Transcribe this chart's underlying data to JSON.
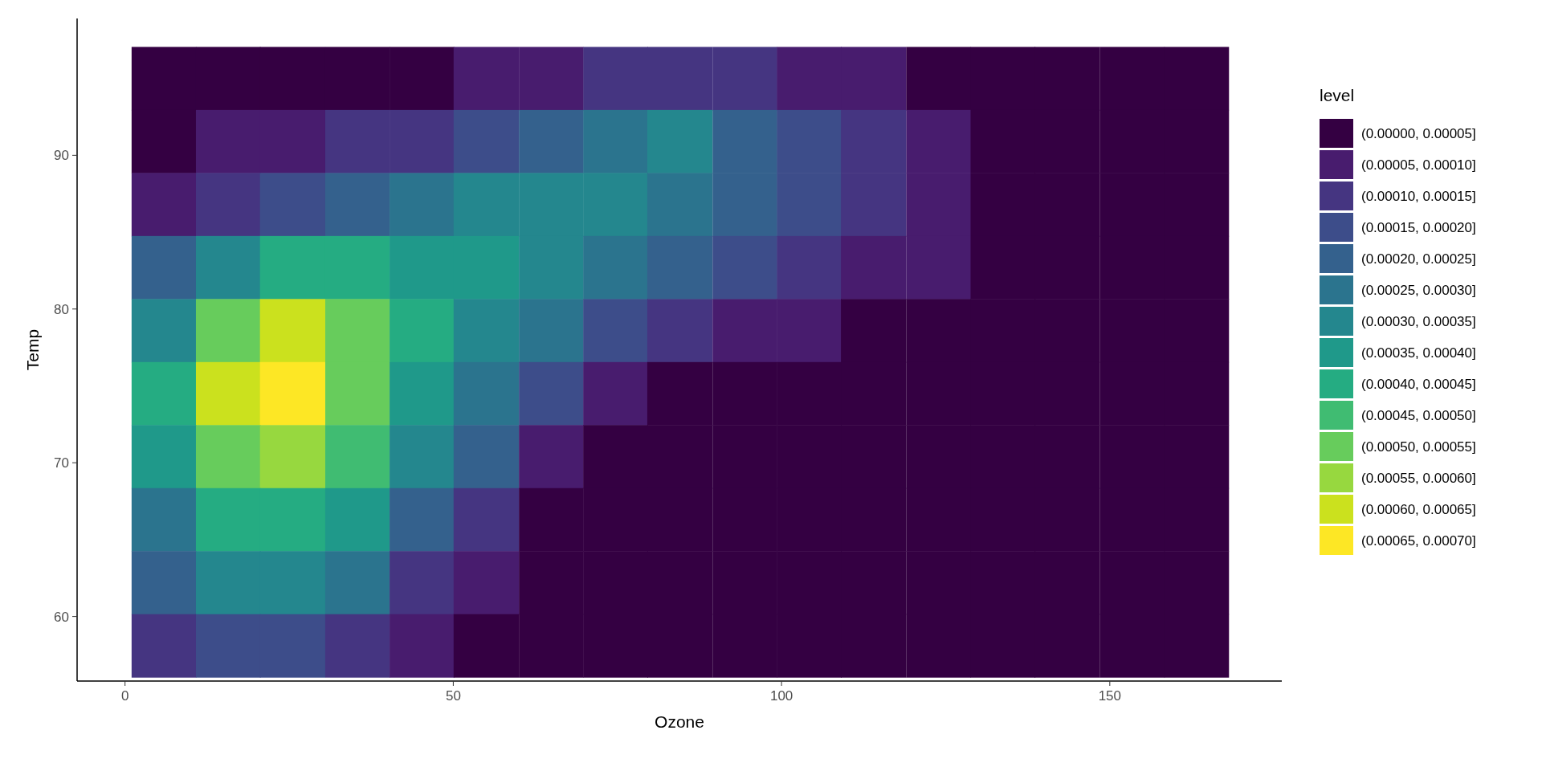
{
  "chart_data": {
    "type": "heatmap",
    "xlabel": "Ozone",
    "ylabel": "Temp",
    "clabel": "level",
    "grid": false,
    "xlim": [
      -7.3,
      176.2
    ],
    "ylim": [
      55.8,
      98.9
    ],
    "xticks": [
      0,
      50,
      100,
      150
    ],
    "yticks": [
      60,
      70,
      80,
      90
    ],
    "x": [
      5.9,
      15.7,
      25.5,
      35.4,
      45.2,
      55,
      64.9,
      74.7,
      84.5,
      94.4,
      104.2,
      114,
      123.9,
      133.7,
      143.5,
      153.4,
      163.2
    ],
    "y": [
      95,
      90.9,
      86.8,
      82.7,
      78.6,
      74.5,
      70.4,
      66.3,
      62.2,
      58.1
    ],
    "clim": [
      0,
      0.0007
    ],
    "colors": [
      "#340042",
      "#481c6e",
      "#453581",
      "#3d4d8a",
      "#34618d",
      "#2b748e",
      "#24878e",
      "#1f998a",
      "#25ac82",
      "#40bc72",
      "#67cc5c",
      "#97d83f",
      "#cbe11e",
      "#fde725"
    ],
    "cticks": [
      {
        "value": 2.5e-05,
        "label": "(0.00000, 0.00005]"
      },
      {
        "value": 7.5e-05,
        "label": "(0.00005, 0.00010]"
      },
      {
        "value": 0.000125,
        "label": "(0.00010, 0.00015]"
      },
      {
        "value": 0.000175,
        "label": "(0.00015, 0.00020]"
      },
      {
        "value": 0.000225,
        "label": "(0.00020, 0.00025]"
      },
      {
        "value": 0.000275,
        "label": "(0.00025, 0.00030]"
      },
      {
        "value": 0.000325,
        "label": "(0.00030, 0.00035]"
      },
      {
        "value": 0.000375,
        "label": "(0.00035, 0.00040]"
      },
      {
        "value": 0.000425,
        "label": "(0.00040, 0.00045]"
      },
      {
        "value": 0.000475,
        "label": "(0.00045, 0.00050]"
      },
      {
        "value": 0.000525,
        "label": "(0.00050, 0.00055]"
      },
      {
        "value": 0.000575,
        "label": "(0.00055, 0.00060]"
      },
      {
        "value": 0.000625,
        "label": "(0.00060, 0.00065]"
      },
      {
        "value": 0.000675,
        "label": "(0.00065, 0.00070]"
      }
    ],
    "cells": [
      [
        2.5e-05,
        2.5e-05,
        2.5e-05,
        2.5e-05,
        2.5e-05,
        7.5e-05,
        7.5e-05,
        0.000125,
        0.000125,
        0.000125,
        7.5e-05,
        7.5e-05,
        2.5e-05,
        2.5e-05,
        2.5e-05,
        2.5e-05,
        2.5e-05
      ],
      [
        2.5e-05,
        7.5e-05,
        7.5e-05,
        0.000125,
        0.000125,
        0.000175,
        0.000225,
        0.000275,
        0.000325,
        0.000225,
        0.000175,
        0.000125,
        7.5e-05,
        2.5e-05,
        2.5e-05,
        2.5e-05,
        2.5e-05
      ],
      [
        7.5e-05,
        0.000125,
        0.000175,
        0.000225,
        0.000275,
        0.000325,
        0.000325,
        0.000325,
        0.000275,
        0.000225,
        0.000175,
        0.000125,
        7.5e-05,
        2.5e-05,
        2.5e-05,
        2.5e-05,
        2.5e-05
      ],
      [
        0.000225,
        0.000325,
        0.000425,
        0.000425,
        0.000375,
        0.000375,
        0.000325,
        0.000275,
        0.000225,
        0.000175,
        0.000125,
        7.5e-05,
        7.5e-05,
        2.5e-05,
        2.5e-05,
        2.5e-05,
        2.5e-05
      ],
      [
        0.000325,
        0.000525,
        0.000625,
        0.000525,
        0.000425,
        0.000325,
        0.000275,
        0.000175,
        0.000125,
        7.5e-05,
        7.5e-05,
        2.5e-05,
        2.5e-05,
        2.5e-05,
        2.5e-05,
        2.5e-05,
        2.5e-05
      ],
      [
        0.000425,
        0.000625,
        0.000675,
        0.000525,
        0.000375,
        0.000275,
        0.000175,
        7.5e-05,
        2.5e-05,
        2.5e-05,
        2.5e-05,
        2.5e-05,
        2.5e-05,
        2.5e-05,
        2.5e-05,
        2.5e-05,
        2.5e-05
      ],
      [
        0.000375,
        0.000525,
        0.000575,
        0.000475,
        0.000325,
        0.000225,
        7.5e-05,
        2.5e-05,
        2.5e-05,
        2.5e-05,
        2.5e-05,
        2.5e-05,
        2.5e-05,
        2.5e-05,
        2.5e-05,
        2.5e-05,
        2.5e-05
      ],
      [
        0.000275,
        0.000425,
        0.000425,
        0.000375,
        0.000225,
        0.000125,
        2.5e-05,
        2.5e-05,
        2.5e-05,
        2.5e-05,
        2.5e-05,
        2.5e-05,
        2.5e-05,
        2.5e-05,
        2.5e-05,
        2.5e-05,
        2.5e-05
      ],
      [
        0.000225,
        0.000325,
        0.000325,
        0.000275,
        0.000125,
        7.5e-05,
        2.5e-05,
        2.5e-05,
        2.5e-05,
        2.5e-05,
        2.5e-05,
        2.5e-05,
        2.5e-05,
        2.5e-05,
        2.5e-05,
        2.5e-05,
        2.5e-05
      ],
      [
        0.000125,
        0.000175,
        0.000175,
        0.000125,
        7.5e-05,
        2.5e-05,
        2.5e-05,
        2.5e-05,
        2.5e-05,
        2.5e-05,
        2.5e-05,
        2.5e-05,
        2.5e-05,
        2.5e-05,
        2.5e-05,
        2.5e-05,
        2.5e-05
      ]
    ]
  }
}
